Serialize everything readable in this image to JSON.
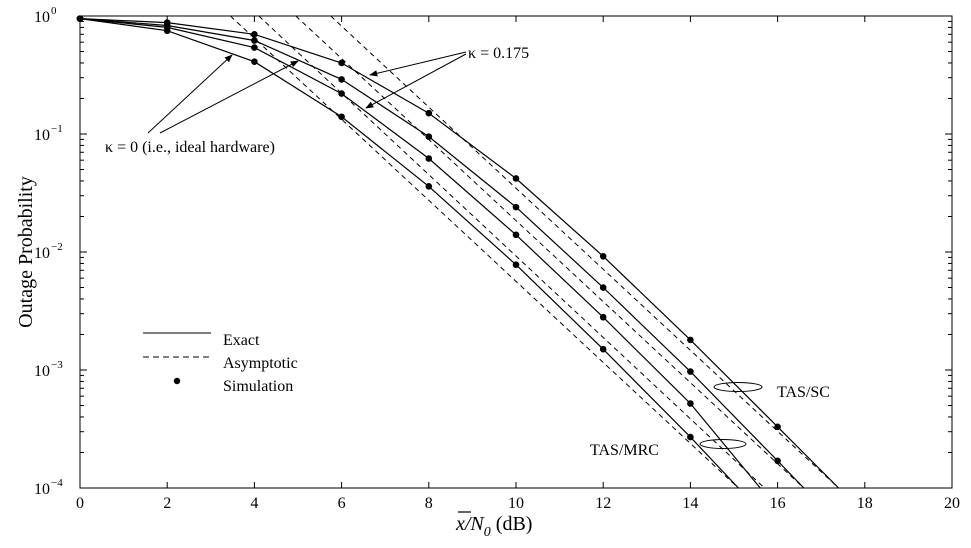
{
  "chart_data": {
    "type": "line",
    "xlabel": "x̄/N0 (dB)",
    "xlabel_parts": {
      "main": "x/N",
      "sub": "0",
      "unit": " (dB)"
    },
    "ylabel": "Outage Probability",
    "xlim": [
      0,
      20
    ],
    "ylim": [
      0.0001,
      1
    ],
    "yscale": "log",
    "grid": false,
    "x_ticks": [
      0,
      2,
      4,
      6,
      8,
      10,
      12,
      14,
      16,
      18,
      20
    ],
    "y_ticks": [
      {
        "value": 1,
        "base": "10",
        "exp": "0"
      },
      {
        "value": 0.1,
        "base": "10",
        "exp": "−1"
      },
      {
        "value": 0.01,
        "base": "10",
        "exp": "−2"
      },
      {
        "value": 0.001,
        "base": "10",
        "exp": "−3"
      },
      {
        "value": 0.0001,
        "base": "10",
        "exp": "−4"
      }
    ],
    "legend": {
      "placement": "lower-left",
      "entries": [
        {
          "label": "Exact",
          "style": "solid"
        },
        {
          "label": "Asymptotic",
          "style": "dashed"
        },
        {
          "label": "Simulation",
          "style": "marker"
        }
      ]
    },
    "annotations": {
      "kappa_nonideal": "κ = 0.175",
      "kappa_ideal": "κ = 0 (i.e., ideal hardware)",
      "tas_sc": "TAS/SC",
      "tas_mrc": "TAS/MRC"
    },
    "exact_series": [
      {
        "group": "TAS/SC",
        "kappa": 0.175,
        "x": [
          0,
          2,
          4,
          6,
          8,
          10,
          12,
          14,
          16,
          17.4
        ],
        "y": [
          0.95,
          0.88,
          0.7,
          0.4,
          0.15,
          0.042,
          0.0092,
          0.0018,
          0.00033,
          0.0001
        ]
      },
      {
        "group": "TAS/SC",
        "kappa": 0,
        "x": [
          0,
          2,
          4,
          6,
          8,
          10,
          12,
          14,
          16,
          16.6
        ],
        "y": [
          0.95,
          0.83,
          0.62,
          0.29,
          0.095,
          0.024,
          0.005,
          0.00097,
          0.00017,
          0.0001
        ]
      },
      {
        "group": "TAS/MRC",
        "kappa": 0.175,
        "x": [
          0,
          2,
          4,
          6,
          8,
          10,
          12,
          14,
          15.6
        ],
        "y": [
          0.95,
          0.8,
          0.54,
          0.22,
          0.062,
          0.014,
          0.0028,
          0.00052,
          0.0001
        ]
      },
      {
        "group": "TAS/MRC",
        "kappa": 0,
        "x": [
          0,
          2,
          4,
          6,
          8,
          10,
          12,
          14,
          15.1
        ],
        "y": [
          0.95,
          0.75,
          0.41,
          0.14,
          0.036,
          0.0078,
          0.0015,
          0.00027,
          0.0001
        ]
      }
    ],
    "asymptotic_series": [
      {
        "group": "TAS/SC",
        "kappa": 0.175,
        "x": [
          5.75,
          17.4
        ],
        "y": [
          1,
          0.0001
        ]
      },
      {
        "group": "TAS/SC",
        "kappa": 0,
        "x": [
          4.95,
          16.6
        ],
        "y": [
          1,
          0.0001
        ]
      },
      {
        "group": "TAS/MRC",
        "kappa": 0.175,
        "x": [
          4.1,
          15.7
        ],
        "y": [
          1,
          0.0001
        ]
      },
      {
        "group": "TAS/MRC",
        "kappa": 0,
        "x": [
          3.45,
          15.1
        ],
        "y": [
          1,
          0.0001
        ]
      }
    ],
    "simulation_series": [
      {
        "group": "TAS/SC",
        "kappa": 0.175,
        "x": [
          0,
          2,
          4,
          6,
          8,
          10,
          12,
          14,
          16
        ],
        "y": [
          0.95,
          0.88,
          0.7,
          0.4,
          0.15,
          0.042,
          0.0092,
          0.0018,
          0.00033
        ]
      },
      {
        "group": "TAS/SC",
        "kappa": 0,
        "x": [
          0,
          2,
          4,
          6,
          8,
          10,
          12,
          14,
          16
        ],
        "y": [
          0.95,
          0.83,
          0.62,
          0.29,
          0.095,
          0.024,
          0.005,
          0.00097,
          0.00017
        ]
      },
      {
        "group": "TAS/MRC",
        "kappa": 0.175,
        "x": [
          0,
          2,
          4,
          6,
          8,
          10,
          12,
          14
        ],
        "y": [
          0.95,
          0.8,
          0.54,
          0.22,
          0.062,
          0.014,
          0.0028,
          0.00052
        ]
      },
      {
        "group": "TAS/MRC",
        "kappa": 0,
        "x": [
          0,
          2,
          4,
          6,
          8,
          10,
          12,
          14
        ],
        "y": [
          0.95,
          0.75,
          0.41,
          0.14,
          0.036,
          0.0078,
          0.0015,
          0.00027
        ]
      }
    ]
  }
}
